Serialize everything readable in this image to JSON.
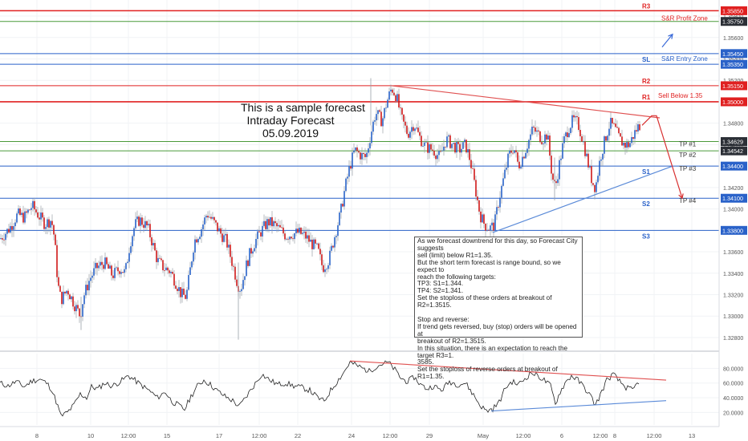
{
  "forecast": {
    "title_lines": [
      "This is a sample forecast",
      "Intraday Forecast",
      "05.09.2019"
    ],
    "note_lines": [
      "As we forecast downtrend for this day, so Forecast City suggests",
      "sell (limit) below R1=1.35.",
      "But the short term forecast is range bound, so we expect to",
      "reach the following targets:",
      "TP3: S1=1.344.",
      "TP4: S2=1.341.",
      "Set the stoploss of these orders at breakout of R2=1.3515.",
      "",
      "Stop and reverse:",
      "If trend gets reversed, buy (stop) orders will be opened at",
      "breakout of R2=1.3515.",
      "In this situation, there is an expectation to reach the target R3=1.",
      "3585.",
      "Set the stoploss of reverse orders at breakout of R1=1.35."
    ]
  },
  "chart_data": [
    {
      "type": "candlestick",
      "x_ticks": [
        "8",
        "10",
        "12:00",
        "15",
        "17",
        "12:00",
        "22",
        "24",
        "12:00",
        "29",
        "May",
        "12:00",
        "6",
        "12:00",
        "8",
        "12:00",
        "13"
      ],
      "y_ticks": [
        1.328,
        1.33,
        1.332,
        1.334,
        1.336,
        1.338,
        1.34,
        1.342,
        1.344,
        1.346,
        1.348,
        1.35,
        1.352,
        1.354,
        1.356,
        1.358
      ],
      "ylim": [
        1.3268,
        1.3595
      ],
      "levels": [
        {
          "label": "R3",
          "value": 1.3585,
          "color": "#e02020",
          "note": "S&R Profit Zone"
        },
        {
          "label": "",
          "value": 1.3575,
          "color": "#4a9a3a"
        },
        {
          "label": "SL",
          "value": 1.3545,
          "color": "#2a62c9",
          "note": "S&R Entry Zone"
        },
        {
          "label": "",
          "value": 1.3535,
          "color": "#2a62c9"
        },
        {
          "label": "R2",
          "value": 1.3515,
          "color": "#e02020"
        },
        {
          "label": "R1",
          "value": 1.35,
          "color": "#e02020",
          "note": "Sell Below 1.35"
        },
        {
          "label": "",
          "value": 1.34629,
          "color": "#4a9a3a",
          "note": "TP #1"
        },
        {
          "label": "",
          "value": 1.34542,
          "color": "#4a9a3a",
          "note": "TP #2"
        },
        {
          "label": "S1",
          "value": 1.344,
          "color": "#2a62c9",
          "note": "TP #3"
        },
        {
          "label": "S2",
          "value": 1.341,
          "color": "#2a62c9",
          "note": "TP #4"
        },
        {
          "label": "S3",
          "value": 1.338,
          "color": "#2a62c9"
        }
      ],
      "price_labels": [
        "1.35850",
        "1.35750",
        "1.35450",
        "1.35350",
        "1.35150",
        "1.35000",
        "1.34629",
        "1.34542",
        "1.34400",
        "1.34100",
        "1.33800"
      ],
      "close_path": [
        [
          0,
          1.3372
        ],
        [
          12,
          1.3382
        ],
        [
          22,
          1.3395
        ],
        [
          30,
          1.3392
        ],
        [
          40,
          1.3403
        ],
        [
          48,
          1.3394
        ],
        [
          56,
          1.3386
        ],
        [
          64,
          1.339
        ],
        [
          68,
          1.3372
        ],
        [
          72,
          1.333
        ],
        [
          76,
          1.3315
        ],
        [
          84,
          1.3325
        ],
        [
          92,
          1.3312
        ],
        [
          100,
          1.33
        ],
        [
          104,
          1.3318
        ],
        [
          112,
          1.3335
        ],
        [
          120,
          1.3345
        ],
        [
          130,
          1.335
        ],
        [
          140,
          1.3338
        ],
        [
          150,
          1.3345
        ],
        [
          156,
          1.334
        ],
        [
          162,
          1.3368
        ],
        [
          168,
          1.3385
        ],
        [
          174,
          1.339
        ],
        [
          184,
          1.3383
        ],
        [
          190,
          1.3368
        ],
        [
          196,
          1.3352
        ],
        [
          204,
          1.3345
        ],
        [
          212,
          1.3342
        ],
        [
          220,
          1.333
        ],
        [
          226,
          1.332
        ],
        [
          232,
          1.3318
        ],
        [
          236,
          1.3338
        ],
        [
          242,
          1.337
        ],
        [
          250,
          1.338
        ],
        [
          258,
          1.3396
        ],
        [
          266,
          1.3388
        ],
        [
          274,
          1.3378
        ],
        [
          282,
          1.337
        ],
        [
          290,
          1.3348
        ],
        [
          296,
          1.333
        ],
        [
          300,
          1.3325
        ],
        [
          306,
          1.3345
        ],
        [
          312,
          1.336
        ],
        [
          318,
          1.337
        ],
        [
          326,
          1.338
        ],
        [
          334,
          1.3388
        ],
        [
          342,
          1.3385
        ],
        [
          350,
          1.338
        ],
        [
          356,
          1.3375
        ],
        [
          366,
          1.3377
        ],
        [
          372,
          1.3378
        ],
        [
          380,
          1.3375
        ],
        [
          388,
          1.3368
        ],
        [
          396,
          1.3362
        ],
        [
          402,
          1.3345
        ],
        [
          410,
          1.3353
        ],
        [
          418,
          1.3378
        ],
        [
          424,
          1.3395
        ],
        [
          430,
          1.342
        ],
        [
          436,
          1.344
        ],
        [
          442,
          1.3455
        ],
        [
          450,
          1.345
        ],
        [
          456,
          1.3448
        ],
        [
          462,
          1.347
        ],
        [
          468,
          1.349
        ],
        [
          476,
          1.3482
        ],
        [
          482,
          1.35
        ],
        [
          488,
          1.3513
        ],
        [
          494,
          1.3505
        ],
        [
          500,
          1.3485
        ],
        [
          508,
          1.347
        ],
        [
          516,
          1.348
        ],
        [
          522,
          1.3468
        ],
        [
          530,
          1.3458
        ],
        [
          540,
          1.3455
        ],
        [
          548,
          1.3448
        ],
        [
          556,
          1.3465
        ],
        [
          564,
          1.346
        ],
        [
          572,
          1.3455
        ],
        [
          580,
          1.346
        ],
        [
          586,
          1.3445
        ],
        [
          592,
          1.342
        ],
        [
          598,
          1.3395
        ],
        [
          604,
          1.3385
        ],
        [
          610,
          1.3382
        ],
        [
          616,
          1.3385
        ],
        [
          622,
          1.341
        ],
        [
          628,
          1.343
        ],
        [
          634,
          1.345
        ],
        [
          640,
          1.3458
        ],
        [
          646,
          1.344
        ],
        [
          652,
          1.345
        ],
        [
          658,
          1.3462
        ],
        [
          664,
          1.3475
        ],
        [
          670,
          1.347
        ],
        [
          676,
          1.3465
        ],
        [
          682,
          1.347
        ],
        [
          688,
          1.343
        ],
        [
          692,
          1.342
        ],
        [
          696,
          1.3438
        ],
        [
          702,
          1.3462
        ],
        [
          708,
          1.3475
        ],
        [
          714,
          1.3483
        ],
        [
          720,
          1.348
        ],
        [
          726,
          1.3465
        ],
        [
          732,
          1.3445
        ],
        [
          738,
          1.3425
        ],
        [
          742,
          1.342
        ],
        [
          748,
          1.3448
        ],
        [
          754,
          1.3465
        ],
        [
          760,
          1.348
        ],
        [
          766,
          1.3475
        ],
        [
          772,
          1.3465
        ],
        [
          778,
          1.346
        ],
        [
          784,
          1.346
        ],
        [
          790,
          1.347
        ],
        [
          796,
          1.3478
        ]
      ],
      "trendlines": [
        {
          "color": "#e05050",
          "points": [
            [
              488,
              1.3515
            ],
            [
              822,
              1.3485
            ]
          ]
        },
        {
          "color": "#5a8ad8",
          "points": [
            [
              614,
              1.3378
            ],
            [
              838,
              1.344
            ]
          ]
        },
        {
          "color": "#d83030",
          "arrow": true,
          "points": [
            [
              800,
              1.3478
            ],
            [
              812,
              1.3487
            ],
            [
              818,
              1.3487
            ],
            [
              850,
              1.341
            ]
          ]
        },
        {
          "color": "#3a6ad8",
          "arrow": true,
          "points": [
            [
              825,
              1.3551
            ],
            [
              838,
              1.3563
            ]
          ]
        }
      ]
    },
    {
      "type": "line",
      "y_ticks": [
        20,
        40,
        60,
        80
      ],
      "ylim": [
        3,
        100
      ],
      "rsi_path": [
        [
          0,
          60
        ],
        [
          10,
          56
        ],
        [
          20,
          62
        ],
        [
          30,
          55
        ],
        [
          40,
          63
        ],
        [
          50,
          65
        ],
        [
          58,
          60
        ],
        [
          64,
          52
        ],
        [
          70,
          35
        ],
        [
          76,
          15
        ],
        [
          84,
          20
        ],
        [
          92,
          30
        ],
        [
          100,
          45
        ],
        [
          108,
          40
        ],
        [
          114,
          55
        ],
        [
          122,
          52
        ],
        [
          130,
          60
        ],
        [
          140,
          56
        ],
        [
          150,
          62
        ],
        [
          160,
          70
        ],
        [
          170,
          62
        ],
        [
          180,
          54
        ],
        [
          188,
          48
        ],
        [
          196,
          40
        ],
        [
          206,
          48
        ],
        [
          214,
          35
        ],
        [
          222,
          30
        ],
        [
          230,
          24
        ],
        [
          238,
          42
        ],
        [
          246,
          56
        ],
        [
          254,
          64
        ],
        [
          262,
          58
        ],
        [
          270,
          50
        ],
        [
          280,
          42
        ],
        [
          290,
          36
        ],
        [
          298,
          28
        ],
        [
          306,
          40
        ],
        [
          316,
          56
        ],
        [
          326,
          72
        ],
        [
          336,
          64
        ],
        [
          346,
          58
        ],
        [
          356,
          60
        ],
        [
          366,
          56
        ],
        [
          376,
          54
        ],
        [
          386,
          50
        ],
        [
          396,
          40
        ],
        [
          404,
          35
        ],
        [
          412,
          50
        ],
        [
          420,
          62
        ],
        [
          428,
          74
        ],
        [
          436,
          88
        ],
        [
          444,
          84
        ],
        [
          452,
          80
        ],
        [
          460,
          76
        ],
        [
          468,
          82
        ],
        [
          476,
          86
        ],
        [
          484,
          88
        ],
        [
          492,
          78
        ],
        [
          500,
          66
        ],
        [
          508,
          62
        ],
        [
          516,
          68
        ],
        [
          524,
          58
        ],
        [
          532,
          52
        ],
        [
          540,
          56
        ],
        [
          550,
          50
        ],
        [
          560,
          62
        ],
        [
          570,
          58
        ],
        [
          580,
          60
        ],
        [
          590,
          44
        ],
        [
          598,
          30
        ],
        [
          606,
          22
        ],
        [
          614,
          25
        ],
        [
          622,
          34
        ],
        [
          630,
          54
        ],
        [
          638,
          62
        ],
        [
          646,
          58
        ],
        [
          654,
          66
        ],
        [
          662,
          74
        ],
        [
          670,
          70
        ],
        [
          678,
          64
        ],
        [
          686,
          56
        ],
        [
          692,
          32
        ],
        [
          698,
          48
        ],
        [
          704,
          60
        ],
        [
          712,
          70
        ],
        [
          720,
          64
        ],
        [
          728,
          54
        ],
        [
          736,
          42
        ],
        [
          742,
          30
        ],
        [
          748,
          44
        ],
        [
          756,
          64
        ],
        [
          764,
          72
        ],
        [
          772,
          62
        ],
        [
          780,
          54
        ],
        [
          788,
          50
        ],
        [
          796,
          62
        ]
      ],
      "trendlines": [
        {
          "color": "#e05050",
          "points": [
            [
              436,
              90
            ],
            [
              830,
              64
            ]
          ]
        },
        {
          "color": "#5a8ad8",
          "points": [
            [
              612,
              22
            ],
            [
              830,
              36
            ]
          ]
        }
      ],
      "price_labels": [
        "80.0000",
        "60.0000",
        "40.0000",
        "20.0000"
      ]
    }
  ]
}
